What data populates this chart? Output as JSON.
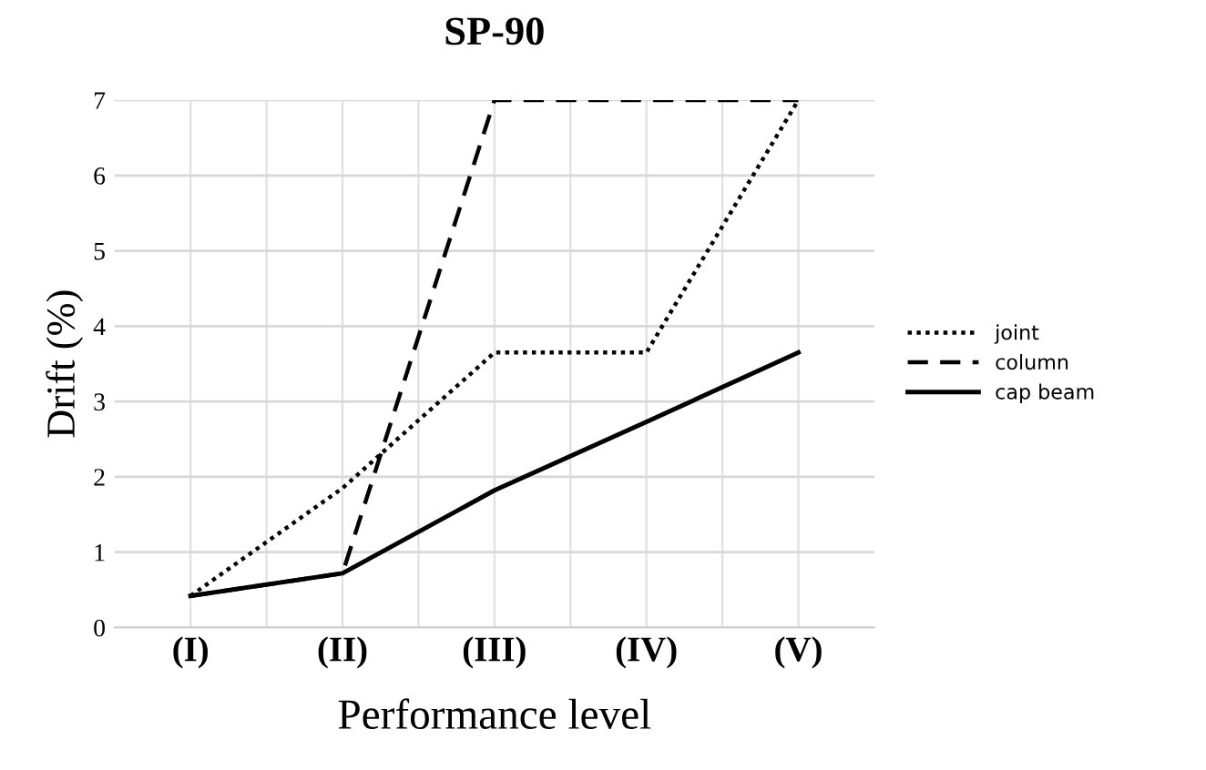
{
  "chart_data": {
    "type": "line",
    "title": "SP-90",
    "xlabel": "Performance level",
    "ylabel": "Drift (%)",
    "categories": [
      "(I)",
      "(II)",
      "(III)",
      "(IV)",
      "(V)"
    ],
    "series": [
      {
        "name": "joint",
        "color": "#000000",
        "line_style": "dotted",
        "values": [
          0.42,
          1.85,
          3.65,
          3.65,
          7
        ]
      },
      {
        "name": "column",
        "color": "#000000",
        "line_style": "dashed",
        "values": [
          0.42,
          0.72,
          7,
          7,
          7
        ]
      },
      {
        "name": "cap beam",
        "color": "#000000",
        "line_style": "solid",
        "values": [
          0.42,
          0.72,
          1.82,
          2.73,
          3.65
        ]
      }
    ],
    "ylim": [
      0,
      7
    ],
    "yticks": [
      0,
      1,
      2,
      3,
      4,
      5,
      6,
      7
    ],
    "grid": true,
    "legend": "right",
    "marker": "none"
  }
}
